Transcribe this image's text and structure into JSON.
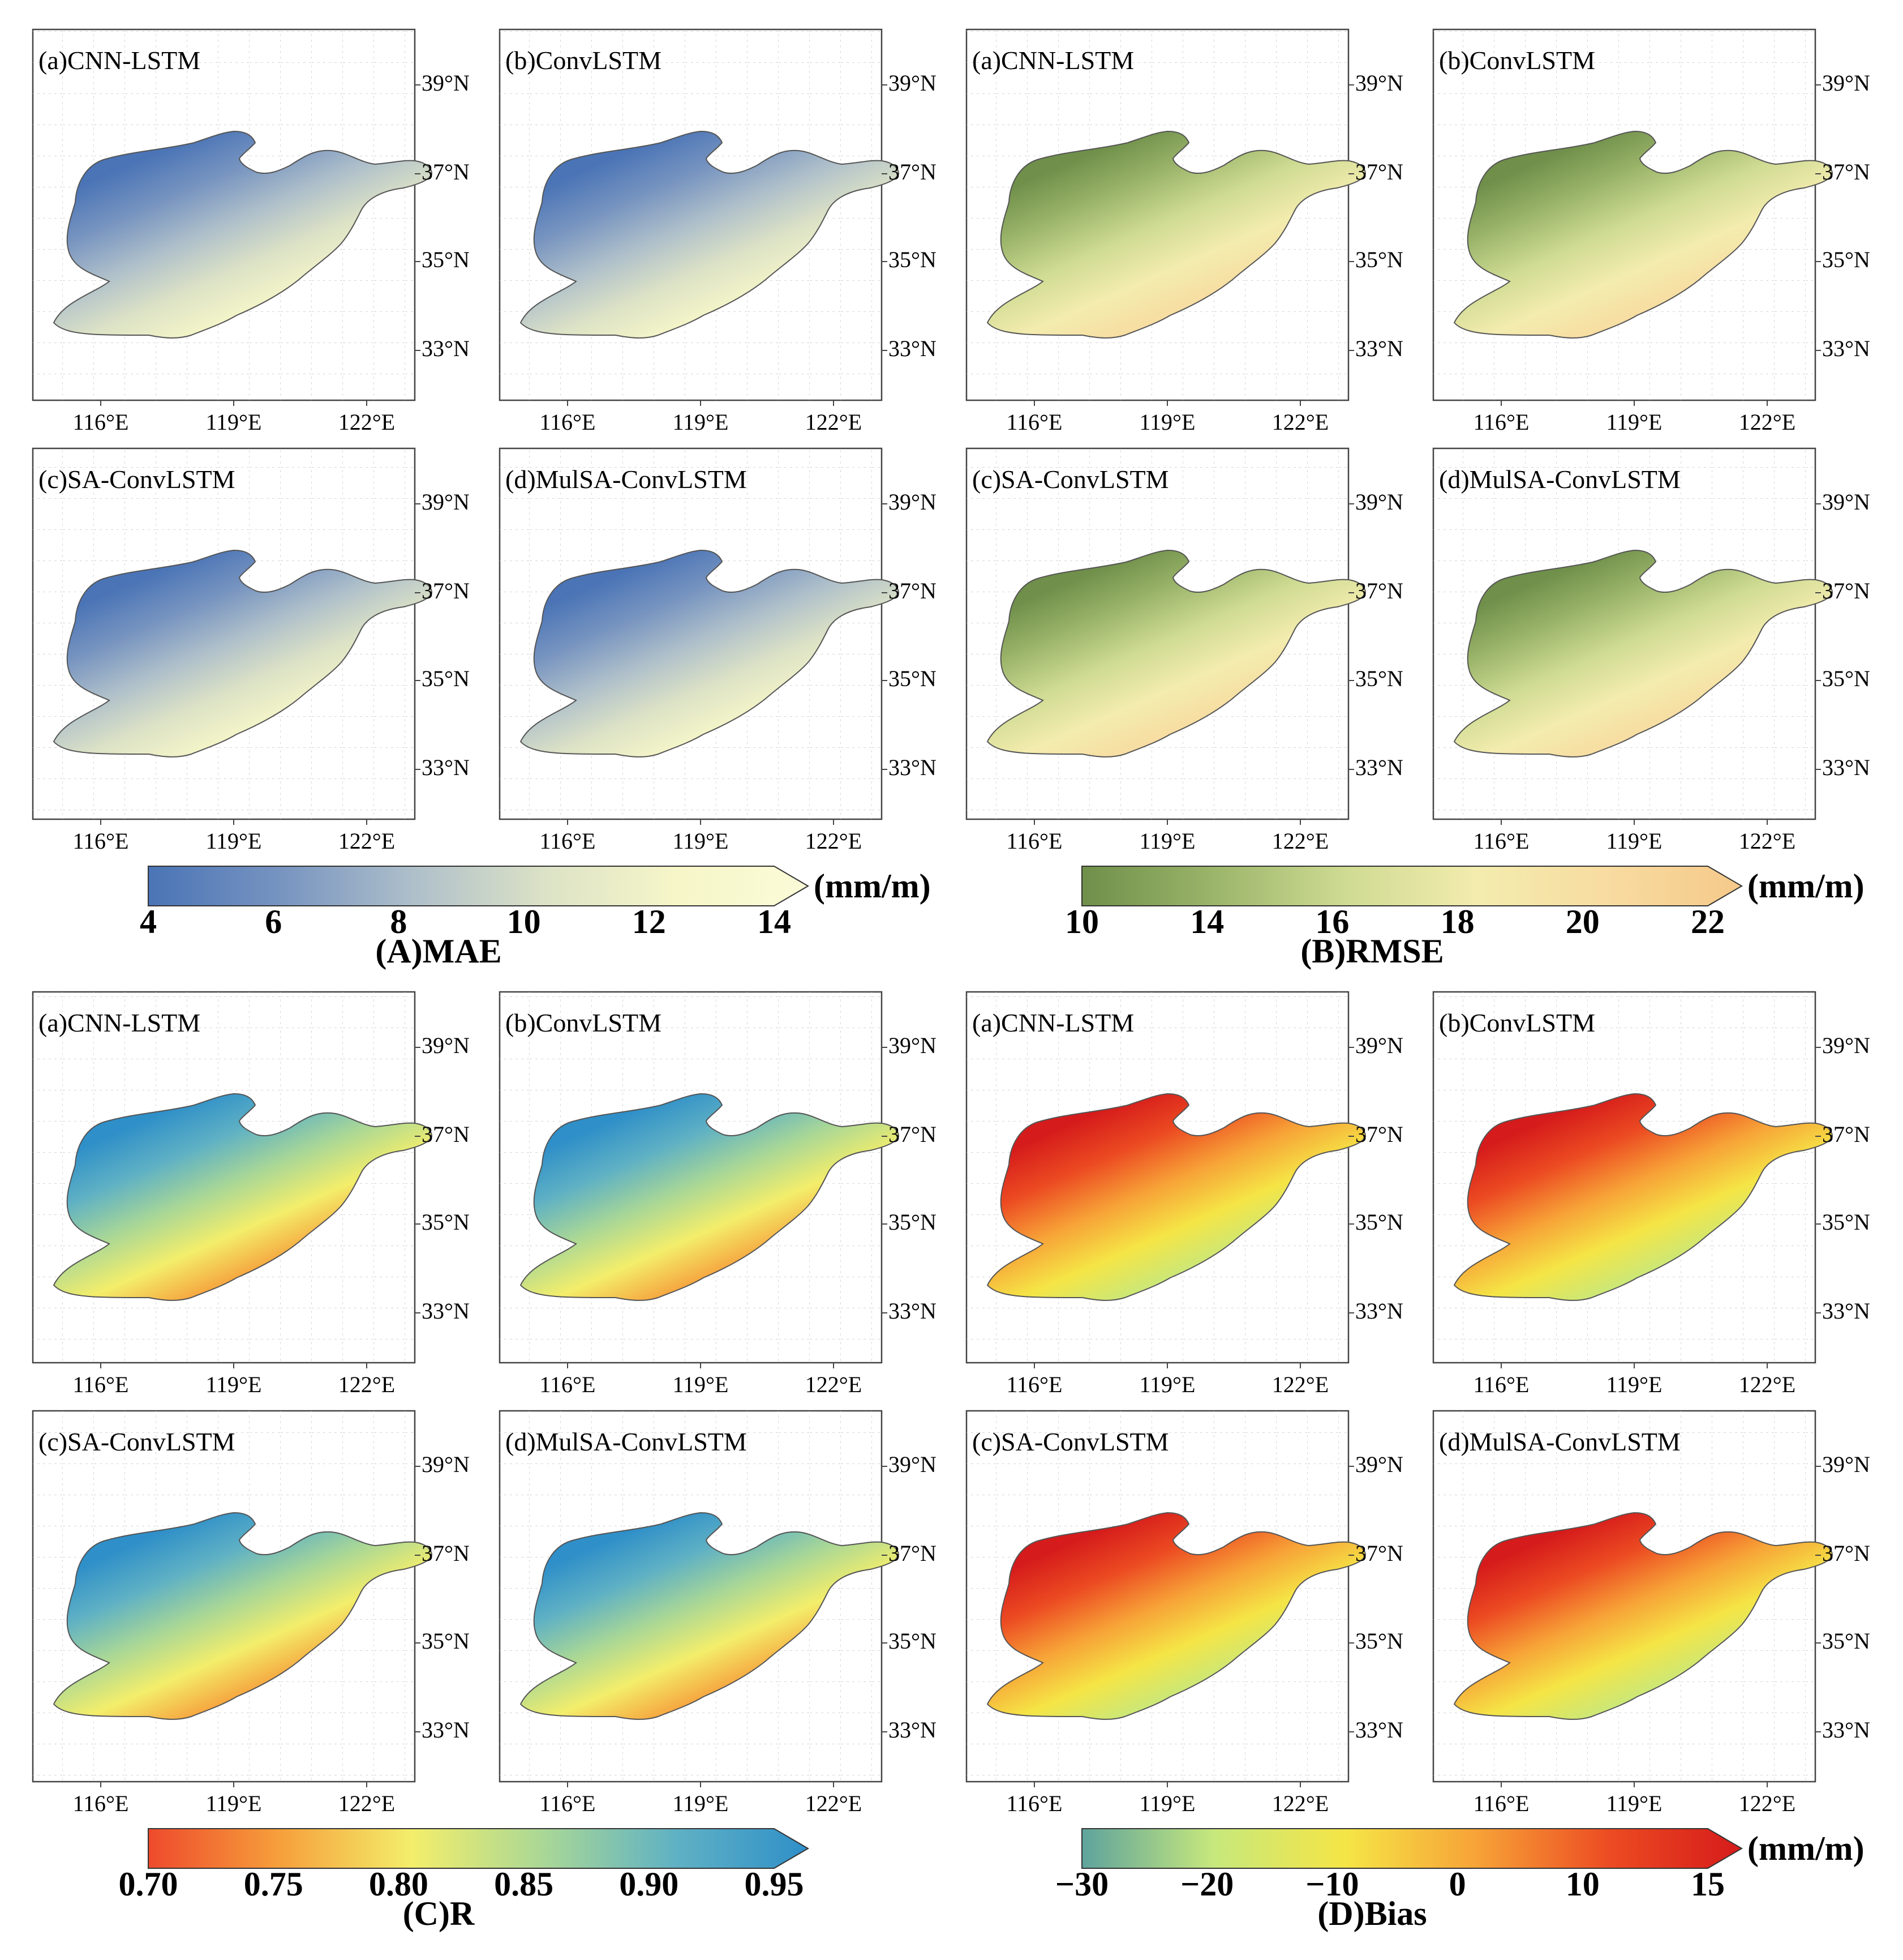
{
  "figure": {
    "panel_labels": [
      "(a)CNN-LSTM",
      "(b)ConvLSTM",
      "(c)SA-ConvLSTM",
      "(d)MulSA-ConvLSTM"
    ],
    "lon_ticks": [
      "116°E",
      "119°E",
      "122°E"
    ],
    "lat_ticks": [
      "39°N",
      "37°N",
      "35°N",
      "33°N"
    ],
    "region": "Shandong province"
  },
  "groups": [
    {
      "id": "A",
      "caption": "(A)MAE",
      "unit": "(mm/m)",
      "colorbar_ticks": [
        "4",
        "6",
        "8",
        "10",
        "12",
        "14"
      ],
      "range": [
        4,
        14
      ],
      "colors": [
        "#4a74b6",
        "#7794c0",
        "#aebfca",
        "#dce2c6",
        "#f6f6c8",
        "#fbfbd8"
      ]
    },
    {
      "id": "B",
      "caption": "(B)RMSE",
      "unit": "(mm/m)",
      "colorbar_ticks": [
        "10",
        "14",
        "16",
        "18",
        "20",
        "22"
      ],
      "range": [
        10,
        22
      ],
      "colors": [
        "#6f8f4a",
        "#9bb56a",
        "#cfdb93",
        "#f3ecae",
        "#f8dba0",
        "#f5c98a"
      ]
    },
    {
      "id": "C",
      "caption": "(C)R",
      "unit": "",
      "colorbar_ticks": [
        "0.70",
        "0.75",
        "0.80",
        "0.85",
        "0.90",
        "0.95"
      ],
      "range": [
        0.7,
        0.95
      ],
      "colors": [
        "#ee4a2c",
        "#f6a03b",
        "#f3ee6b",
        "#a9d796",
        "#5fb1c4",
        "#2f8fc8"
      ]
    },
    {
      "id": "D",
      "caption": "(D)Bias",
      "unit": "(mm/m)",
      "colorbar_ticks": [
        "−30",
        "−20",
        "−10",
        "0",
        "10",
        "15"
      ],
      "range": [
        -30,
        15
      ],
      "colors": [
        "#5ea39d",
        "#c7e87c",
        "#f5e546",
        "#f7a237",
        "#ec4b22",
        "#d51b1b"
      ]
    }
  ]
}
